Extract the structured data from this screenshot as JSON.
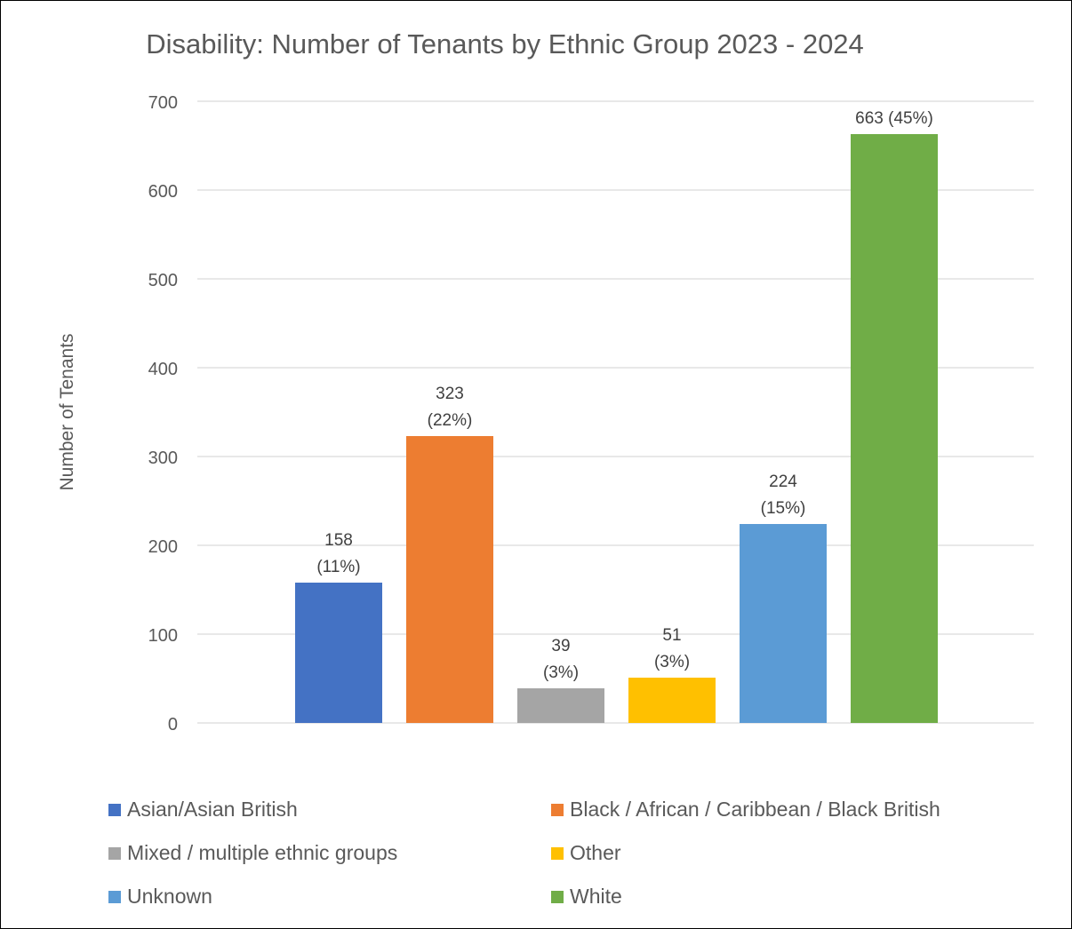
{
  "chart_data": {
    "type": "bar",
    "title": "Disability: Number of Tenants by Ethnic Group 2023 - 2024",
    "ylabel": "Number of Tenants",
    "xlabel": "",
    "ylim": [
      0,
      700
    ],
    "yticks": [
      0,
      100,
      200,
      300,
      400,
      500,
      600,
      700
    ],
    "grid": true,
    "legend_position": "bottom",
    "categories": [
      "Asian/Asian British",
      "Black / African / Caribbean / Black British",
      "Mixed / multiple ethnic groups",
      "Other",
      "Unknown",
      "White"
    ],
    "values": [
      158,
      323,
      39,
      51,
      224,
      663
    ],
    "data_labels": [
      [
        "158",
        "(11%)"
      ],
      [
        "323",
        "(22%)"
      ],
      [
        "39",
        "(3%)"
      ],
      [
        "51",
        "(3%)"
      ],
      [
        "224",
        "(15%)"
      ],
      [
        "663 (45%)"
      ]
    ],
    "colors": [
      "#4472C4",
      "#ED7D31",
      "#A5A5A5",
      "#FFC000",
      "#5B9BD5",
      "#70AD47"
    ]
  }
}
